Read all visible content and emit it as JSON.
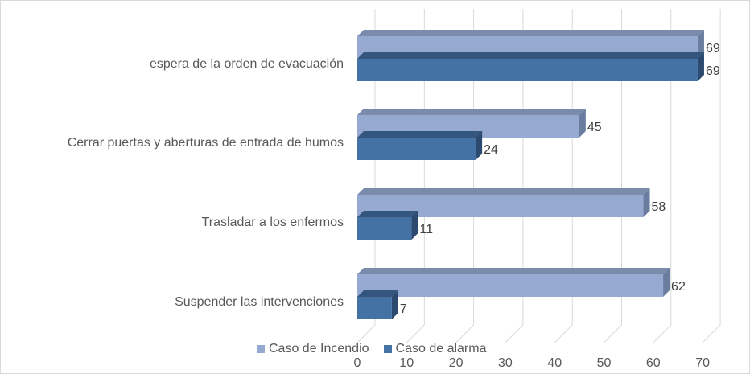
{
  "chart_data": {
    "type": "bar",
    "orientation": "horizontal",
    "three_d": true,
    "categories": [
      "espera de la orden de evacuación",
      "Cerrar puertas y aberturas de entrada de humos",
      "Trasladar a los enfermos",
      "Suspender las intervenciones"
    ],
    "series": [
      {
        "name": "Caso de Incendio",
        "values": [
          69,
          45,
          58,
          62
        ],
        "color": "#95a9d1",
        "side_color": "#6b7d9e",
        "top_color": "#7b8bab"
      },
      {
        "name": "Caso de alarma",
        "values": [
          69,
          24,
          11,
          7
        ],
        "color": "#4472a4",
        "side_color": "#2c4a70",
        "top_color": "#34557e"
      }
    ],
    "xlim": [
      0,
      70
    ],
    "xticks": [
      "0",
      "10",
      "20",
      "30",
      "40",
      "50",
      "60",
      "70"
    ],
    "grid": true,
    "legend_position": "bottom",
    "title": "",
    "xlabel": "",
    "ylabel": ""
  }
}
